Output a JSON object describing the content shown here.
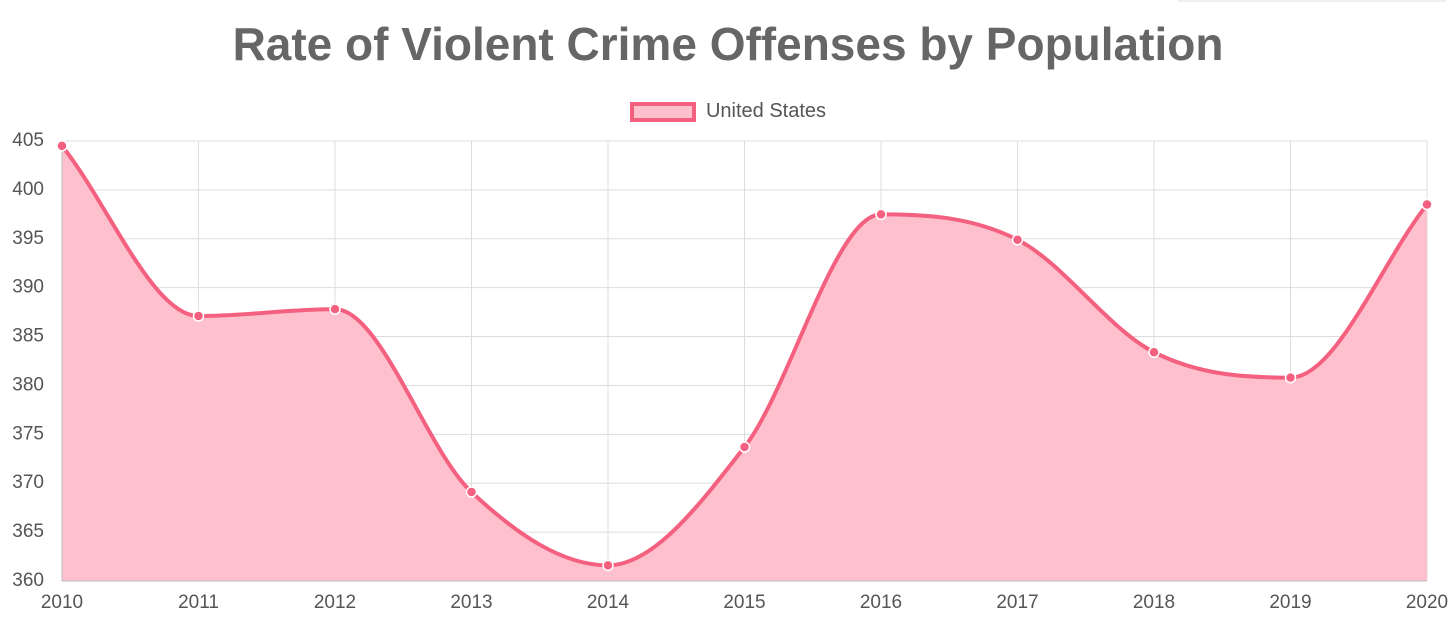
{
  "chart_data": {
    "type": "area",
    "title": "Rate of Violent Crime Offenses by Population",
    "xlabel": "",
    "ylabel": "",
    "categories": [
      "2010",
      "2011",
      "2012",
      "2013",
      "2014",
      "2015",
      "2016",
      "2017",
      "2018",
      "2019",
      "2020"
    ],
    "series": [
      {
        "name": "United States",
        "values": [
          404.5,
          387.1,
          387.8,
          369.1,
          361.6,
          373.7,
          397.5,
          394.9,
          383.4,
          380.8,
          398.5
        ],
        "color": "#f4607f",
        "fill": "#ffc0cd"
      }
    ],
    "ylim": [
      360,
      405
    ],
    "y_ticks": [
      "360",
      "365",
      "370",
      "375",
      "380",
      "385",
      "390",
      "395",
      "400",
      "405"
    ],
    "grid": true,
    "legend_position": "top-center",
    "smooth": true
  }
}
